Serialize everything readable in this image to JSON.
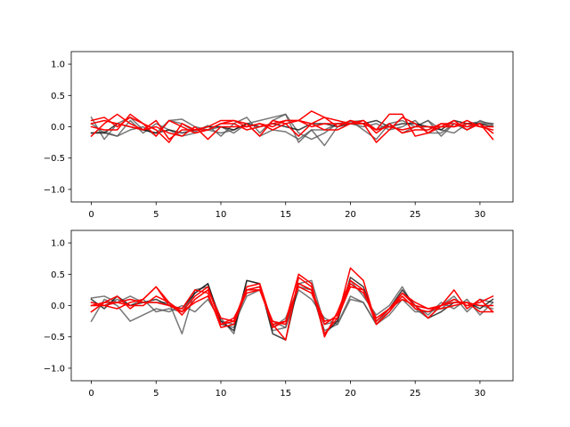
{
  "chart_data": [
    {
      "type": "line",
      "title": "",
      "xlabel": "",
      "ylabel": "",
      "xlim": [
        -1.55,
        32.55
      ],
      "ylim": [
        -1.2,
        1.2
      ],
      "xticks": [
        0,
        5,
        10,
        15,
        20,
        25,
        30
      ],
      "yticks": [
        -1.0,
        -0.5,
        0.0,
        0.5,
        1.0
      ],
      "xtick_labels": [
        "0",
        "5",
        "10",
        "15",
        "20",
        "25",
        "30"
      ],
      "ytick_labels": [
        "−1.0",
        "−0.5",
        "0.0",
        "0.5",
        "1.0"
      ],
      "grid": false,
      "legend": "none",
      "x": [
        0,
        1,
        2,
        3,
        4,
        5,
        6,
        7,
        8,
        9,
        10,
        11,
        12,
        13,
        14,
        15,
        16,
        17,
        18,
        19,
        20,
        21,
        22,
        23,
        24,
        25,
        26,
        27,
        28,
        29,
        30,
        31
      ],
      "series": [
        {
          "color": "#555555",
          "alpha": 0.8,
          "values": [
            0.15,
            -0.2,
            0.05,
            0.15,
            -0.05,
            -0.1,
            0.1,
            0.05,
            -0.08,
            0.02,
            -0.15,
            0.05,
            0.15,
            -0.1,
            0.1,
            0.2,
            -0.25,
            -0.05,
            -0.3,
            0.0,
            0.1,
            -0.05,
            -0.2,
            0.05,
            -0.1,
            0.0,
            0.1,
            -0.15,
            0.05,
            -0.05,
            0.1,
            0.02
          ]
        },
        {
          "color": "#555555",
          "alpha": 0.8,
          "values": [
            -0.1,
            -0.08,
            -0.15,
            -0.05,
            0.0,
            -0.15,
            0.1,
            0.12,
            0.0,
            -0.05,
            0.0,
            -0.1,
            0.05,
            0.1,
            0.15,
            0.2,
            -0.1,
            -0.2,
            -0.1,
            0.05,
            0.08,
            0.1,
            -0.05,
            0.05,
            0.1,
            0.0,
            0.1,
            -0.05,
            -0.1,
            0.05,
            0.08,
            0.05
          ]
        },
        {
          "color": "#555555",
          "alpha": 0.8,
          "values": [
            0.05,
            -0.1,
            -0.15,
            0.1,
            -0.1,
            0.05,
            -0.05,
            -0.15,
            -0.1,
            -0.05,
            -0.1,
            -0.05,
            0.05,
            -0.15,
            -0.05,
            -0.08,
            -0.2,
            -0.05,
            -0.05,
            0.05,
            0.05,
            0.0,
            0.05,
            -0.05,
            0.0,
            0.1,
            -0.1,
            -0.1,
            0.05,
            0.0,
            0.05,
            0.05
          ]
        },
        {
          "color": "#111111",
          "alpha": 0.8,
          "values": [
            -0.1,
            -0.1,
            0.05,
            0.0,
            -0.05,
            -0.1,
            -0.05,
            -0.1,
            -0.05,
            0.0,
            0.0,
            -0.05,
            0.05,
            0.0,
            0.05,
            0.0,
            -0.05,
            0.05,
            0.05,
            0.0,
            0.05,
            0.05,
            0.1,
            0.0,
            0.05,
            0.05,
            0.0,
            -0.05,
            0.1,
            0.05,
            0.05,
            0.0
          ]
        },
        {
          "color": "#ff0000",
          "alpha": 1.0,
          "values": [
            0.1,
            0.15,
            0.0,
            0.15,
            0.05,
            -0.15,
            0.1,
            0.0,
            -0.1,
            -0.05,
            0.05,
            0.05,
            -0.05,
            0.0,
            0.05,
            0.1,
            0.1,
            0.25,
            0.15,
            0.1,
            0.05,
            0.1,
            -0.05,
            0.2,
            0.2,
            -0.15,
            -0.1,
            0.0,
            0.1,
            -0.05,
            0.05,
            -0.2
          ]
        },
        {
          "color": "#ff0000",
          "alpha": 1.0,
          "values": [
            -0.15,
            0.05,
            0.2,
            0.05,
            -0.05,
            0.1,
            -0.2,
            -0.05,
            -0.05,
            -0.05,
            0.05,
            0.1,
            0.0,
            0.05,
            -0.05,
            0.05,
            0.1,
            0.05,
            -0.05,
            -0.05,
            0.05,
            0.1,
            -0.1,
            0.05,
            -0.1,
            -0.05,
            -0.05,
            0.05,
            0.0,
            0.1,
            0.0,
            -0.05
          ]
        },
        {
          "color": "#ff0000",
          "alpha": 1.0,
          "values": [
            0.0,
            -0.05,
            -0.05,
            0.2,
            0.05,
            -0.05,
            -0.25,
            0.05,
            -0.05,
            0.0,
            0.1,
            0.1,
            0.05,
            -0.15,
            0.1,
            0.05,
            -0.15,
            0.05,
            0.15,
            0.0,
            0.1,
            0.05,
            -0.25,
            -0.05,
            0.15,
            0.05,
            -0.1,
            0.05,
            0.05,
            0.0,
            0.05,
            -0.1
          ]
        },
        {
          "color": "#ff0000",
          "alpha": 1.0,
          "values": [
            0.05,
            0.1,
            0.05,
            0.0,
            -0.05,
            0.0,
            -0.1,
            -0.15,
            0.0,
            -0.2,
            0.0,
            0.0,
            0.0,
            0.05,
            0.0,
            0.1,
            0.1,
            0.0,
            0.05,
            0.05,
            0.05,
            0.05,
            -0.05,
            0.0,
            -0.05,
            0.0,
            0.0,
            0.0,
            0.0,
            0.05,
            0.0,
            0.0
          ]
        }
      ]
    },
    {
      "type": "line",
      "title": "",
      "xlabel": "",
      "ylabel": "",
      "xlim": [
        -1.55,
        32.55
      ],
      "ylim": [
        -1.2,
        1.2
      ],
      "xticks": [
        0,
        5,
        10,
        15,
        20,
        25,
        30
      ],
      "yticks": [
        -1.0,
        -0.5,
        0.0,
        0.5,
        1.0
      ],
      "xtick_labels": [
        "0",
        "5",
        "10",
        "15",
        "20",
        "25",
        "30"
      ],
      "ytick_labels": [
        "−1.0",
        "−0.5",
        "0.0",
        "0.5",
        "1.0"
      ],
      "grid": false,
      "legend": "none",
      "x": [
        0,
        1,
        2,
        3,
        4,
        5,
        6,
        7,
        8,
        9,
        10,
        11,
        12,
        13,
        14,
        15,
        16,
        17,
        18,
        19,
        20,
        21,
        22,
        23,
        24,
        25,
        26,
        27,
        28,
        29,
        30,
        31
      ],
      "series": [
        {
          "color": "#555555",
          "alpha": 0.8,
          "values": [
            0.12,
            0.15,
            0.05,
            0.15,
            0.05,
            0.05,
            0.05,
            -0.45,
            0.25,
            0.3,
            -0.2,
            -0.45,
            0.4,
            0.35,
            -0.4,
            -0.35,
            0.35,
            0.4,
            -0.3,
            -0.25,
            0.4,
            0.15,
            -0.15,
            0.0,
            0.3,
            -0.05,
            -0.2,
            0.0,
            0.15,
            -0.1,
            0.1,
            0.05
          ]
        },
        {
          "color": "#555555",
          "alpha": 0.8,
          "values": [
            -0.25,
            0.1,
            0.0,
            -0.25,
            -0.15,
            -0.05,
            -0.1,
            0.0,
            -0.1,
            0.1,
            -0.25,
            -0.3,
            0.15,
            0.25,
            -0.25,
            -0.35,
            0.25,
            0.1,
            -0.2,
            -0.3,
            0.1,
            0.05,
            -0.3,
            -0.05,
            0.2,
            0.0,
            -0.15,
            0.05,
            -0.05,
            0.1,
            -0.15,
            0.05
          ]
        },
        {
          "color": "#555555",
          "alpha": 0.8,
          "values": [
            0.05,
            0.0,
            0.1,
            0.0,
            0.1,
            -0.1,
            -0.05,
            -0.1,
            0.2,
            0.35,
            -0.3,
            -0.35,
            0.25,
            0.3,
            -0.35,
            -0.2,
            0.3,
            0.25,
            -0.4,
            -0.3,
            0.15,
            0.05,
            -0.3,
            -0.15,
            0.1,
            -0.1,
            -0.1,
            -0.05,
            0.1,
            0.0,
            0.0,
            -0.05
          ]
        },
        {
          "color": "#111111",
          "alpha": 0.8,
          "values": [
            0.1,
            -0.05,
            0.15,
            0.0,
            0.05,
            0.1,
            0.0,
            -0.05,
            0.2,
            0.35,
            -0.25,
            -0.4,
            0.4,
            0.35,
            -0.45,
            -0.55,
            0.35,
            0.25,
            -0.45,
            -0.25,
            0.45,
            0.3,
            -0.25,
            -0.05,
            0.25,
            0.0,
            -0.2,
            -0.1,
            0.05,
            0.05,
            -0.05,
            0.1
          ]
        },
        {
          "color": "#ff0000",
          "alpha": 1.0,
          "values": [
            0.0,
            0.05,
            0.15,
            -0.05,
            0.1,
            0.3,
            0.05,
            -0.1,
            0.15,
            0.3,
            -0.3,
            -0.25,
            0.3,
            0.35,
            -0.3,
            -0.55,
            0.45,
            0.3,
            -0.45,
            -0.2,
            0.6,
            0.4,
            -0.3,
            -0.1,
            0.2,
            0.0,
            -0.2,
            0.0,
            0.1,
            0.0,
            0.05,
            0.15
          ]
        },
        {
          "color": "#ff0000",
          "alpha": 1.0,
          "values": [
            0.05,
            0.0,
            -0.05,
            0.05,
            0.1,
            0.3,
            0.0,
            -0.05,
            0.25,
            0.2,
            -0.35,
            -0.3,
            0.25,
            0.3,
            -0.35,
            -0.25,
            0.5,
            0.35,
            -0.5,
            -0.1,
            0.4,
            0.25,
            -0.25,
            -0.05,
            0.2,
            0.05,
            -0.05,
            0.0,
            0.05,
            0.05,
            -0.1,
            -0.1
          ]
        },
        {
          "color": "#ff0000",
          "alpha": 1.0,
          "values": [
            -0.1,
            0.05,
            0.05,
            0.0,
            0.0,
            0.15,
            0.05,
            -0.15,
            0.1,
            0.25,
            -0.2,
            -0.25,
            0.25,
            0.25,
            -0.25,
            -0.3,
            0.35,
            0.25,
            -0.25,
            -0.2,
            0.3,
            0.25,
            -0.3,
            -0.1,
            0.15,
            -0.05,
            -0.1,
            0.0,
            0.25,
            -0.05,
            0.1,
            -0.1
          ]
        },
        {
          "color": "#ff0000",
          "alpha": 1.0,
          "values": [
            0.0,
            0.0,
            0.05,
            0.1,
            0.05,
            0.05,
            0.0,
            -0.1,
            0.05,
            0.15,
            -0.3,
            -0.2,
            0.2,
            0.25,
            -0.3,
            -0.25,
            0.3,
            0.2,
            -0.3,
            -0.15,
            0.35,
            0.2,
            -0.2,
            -0.05,
            0.1,
            0.0,
            -0.05,
            -0.05,
            0.0,
            0.05,
            0.0,
            0.0
          ]
        }
      ]
    }
  ]
}
